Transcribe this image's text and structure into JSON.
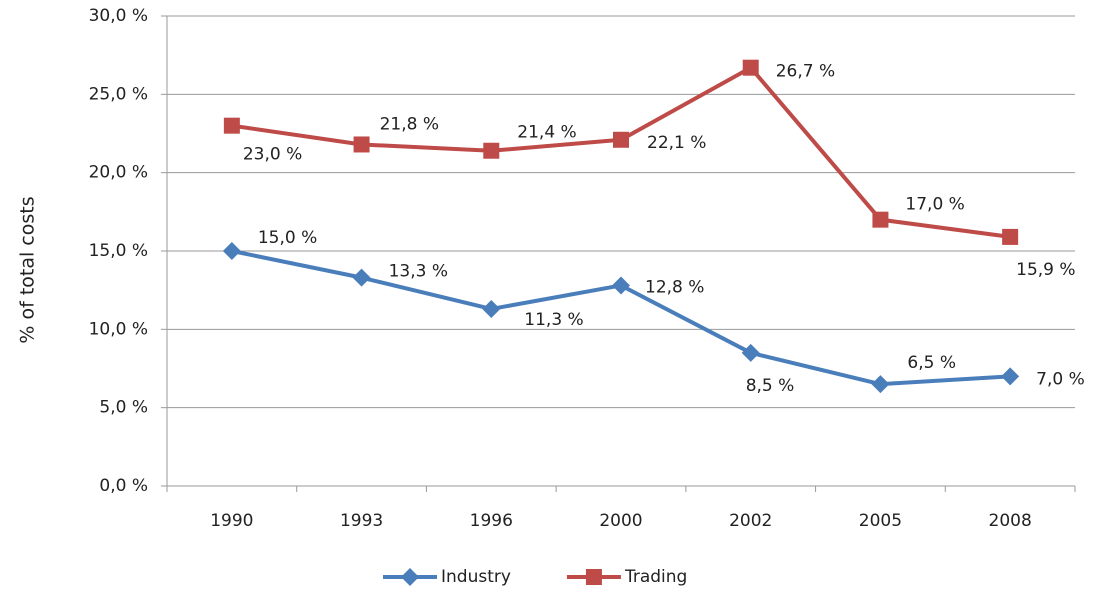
{
  "chart_data": {
    "type": "line",
    "y_label": "% of total costs",
    "categories": [
      "1990",
      "1993",
      "1996",
      "2000",
      "2002",
      "2005",
      "2008"
    ],
    "series": [
      {
        "name": "Industry",
        "color": "#4a7ebb",
        "marker": "diamond",
        "values": [
          15.0,
          13.3,
          11.3,
          12.8,
          8.5,
          6.5,
          7.0
        ],
        "value_labels": [
          "15,0 %",
          "13,3 %",
          "11,3 %",
          "12,8 %",
          "8,5 %",
          "6,5 %",
          "7,0 %"
        ]
      },
      {
        "name": "Trading",
        "color": "#be4b48",
        "marker": "square",
        "values": [
          23.0,
          21.8,
          21.4,
          22.1,
          26.7,
          17.0,
          15.9
        ],
        "value_labels": [
          "23,0 %",
          "21,8 %",
          "21,4 %",
          "22,1 %",
          "26,7 %",
          "17,0 %",
          "15,9 %"
        ]
      }
    ],
    "ylim": [
      0,
      30
    ],
    "yticks": [
      {
        "value": 0,
        "label": "0,0 %"
      },
      {
        "value": 5,
        "label": "5,0 %"
      },
      {
        "value": 10,
        "label": "10,0 %"
      },
      {
        "value": 15,
        "label": "15,0 %"
      },
      {
        "value": 20,
        "label": "20,0 %"
      },
      {
        "value": 25,
        "label": "25,0 %"
      },
      {
        "value": 30,
        "label": "30,0 %"
      }
    ],
    "grid": true,
    "legend": "bottom"
  }
}
